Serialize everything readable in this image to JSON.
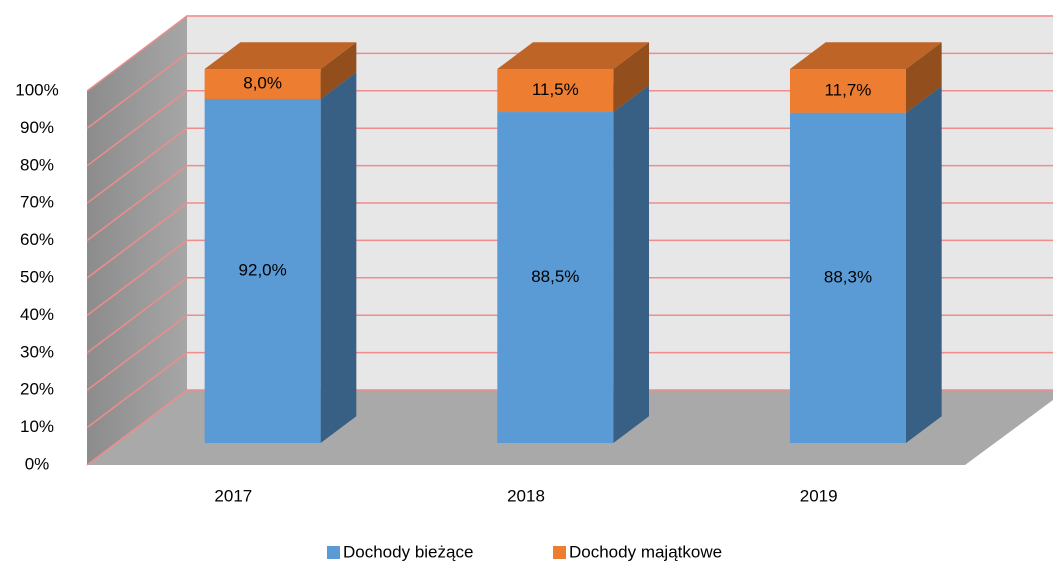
{
  "chart_data": {
    "type": "bar",
    "stacked": true,
    "categories": [
      "2017",
      "2018",
      "2019"
    ],
    "series": [
      {
        "name": "Dochody bieżące",
        "color": "#5b9bd5",
        "values": [
          92.0,
          88.5,
          88.3
        ],
        "value_labels": [
          "92,0%",
          "88,5%",
          "88,3%"
        ]
      },
      {
        "name": "Dochody majątkowe",
        "color": "#ed7d31",
        "values": [
          8.0,
          11.5,
          11.7
        ],
        "value_labels": [
          "8,0%",
          "11,5%",
          "11,7%"
        ]
      }
    ],
    "ylim": [
      0,
      100
    ],
    "yticks": [
      {
        "value": 0,
        "label": "0%"
      },
      {
        "value": 10,
        "label": "10%"
      },
      {
        "value": 20,
        "label": "20%"
      },
      {
        "value": 30,
        "label": "30%"
      },
      {
        "value": 40,
        "label": "40%"
      },
      {
        "value": 50,
        "label": "50%"
      },
      {
        "value": 60,
        "label": "60%"
      },
      {
        "value": 70,
        "label": "70%"
      },
      {
        "value": 80,
        "label": "80%"
      },
      {
        "value": 90,
        "label": "90%"
      },
      {
        "value": 100,
        "label": "100%"
      }
    ],
    "grid": true,
    "legend": "bottom"
  }
}
